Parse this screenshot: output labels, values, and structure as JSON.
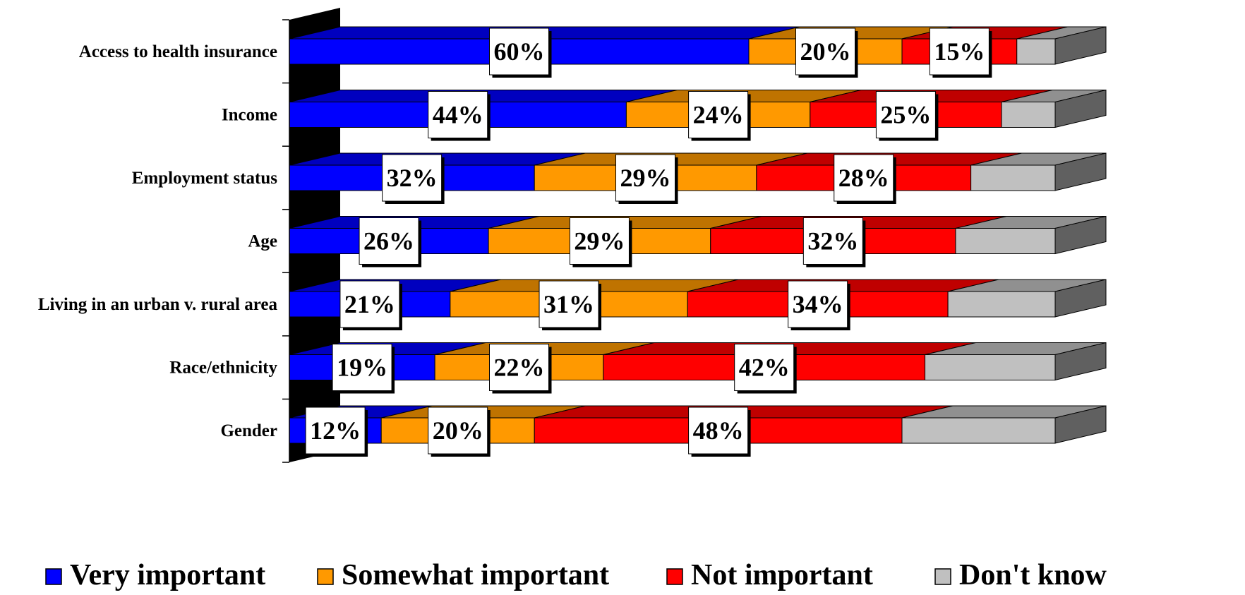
{
  "chart_data": {
    "type": "bar",
    "orientation": "horizontal",
    "stacked": true,
    "categories": [
      "Access to health insurance",
      "Income",
      "Employment status",
      "Age",
      "Living in an urban v. rural area",
      "Race/ethnicity",
      "Gender"
    ],
    "series": [
      {
        "name": "Very important",
        "values": [
          60,
          44,
          32,
          26,
          21,
          19,
          12
        ],
        "color": "#0000ff",
        "labeled": true
      },
      {
        "name": "Somewhat important",
        "values": [
          20,
          24,
          29,
          29,
          31,
          22,
          20
        ],
        "color": "#ff9900",
        "labeled": true
      },
      {
        "name": "Not important",
        "values": [
          15,
          25,
          28,
          32,
          34,
          42,
          48
        ],
        "color": "#ff0000",
        "labeled": true
      },
      {
        "name": "Don't know",
        "values": [
          5,
          7,
          11,
          13,
          14,
          17,
          20
        ],
        "color": "#c0c0c0",
        "labeled": false
      }
    ],
    "value_suffix": "%",
    "xlim": [
      0,
      100
    ],
    "legend_position": "bottom"
  }
}
